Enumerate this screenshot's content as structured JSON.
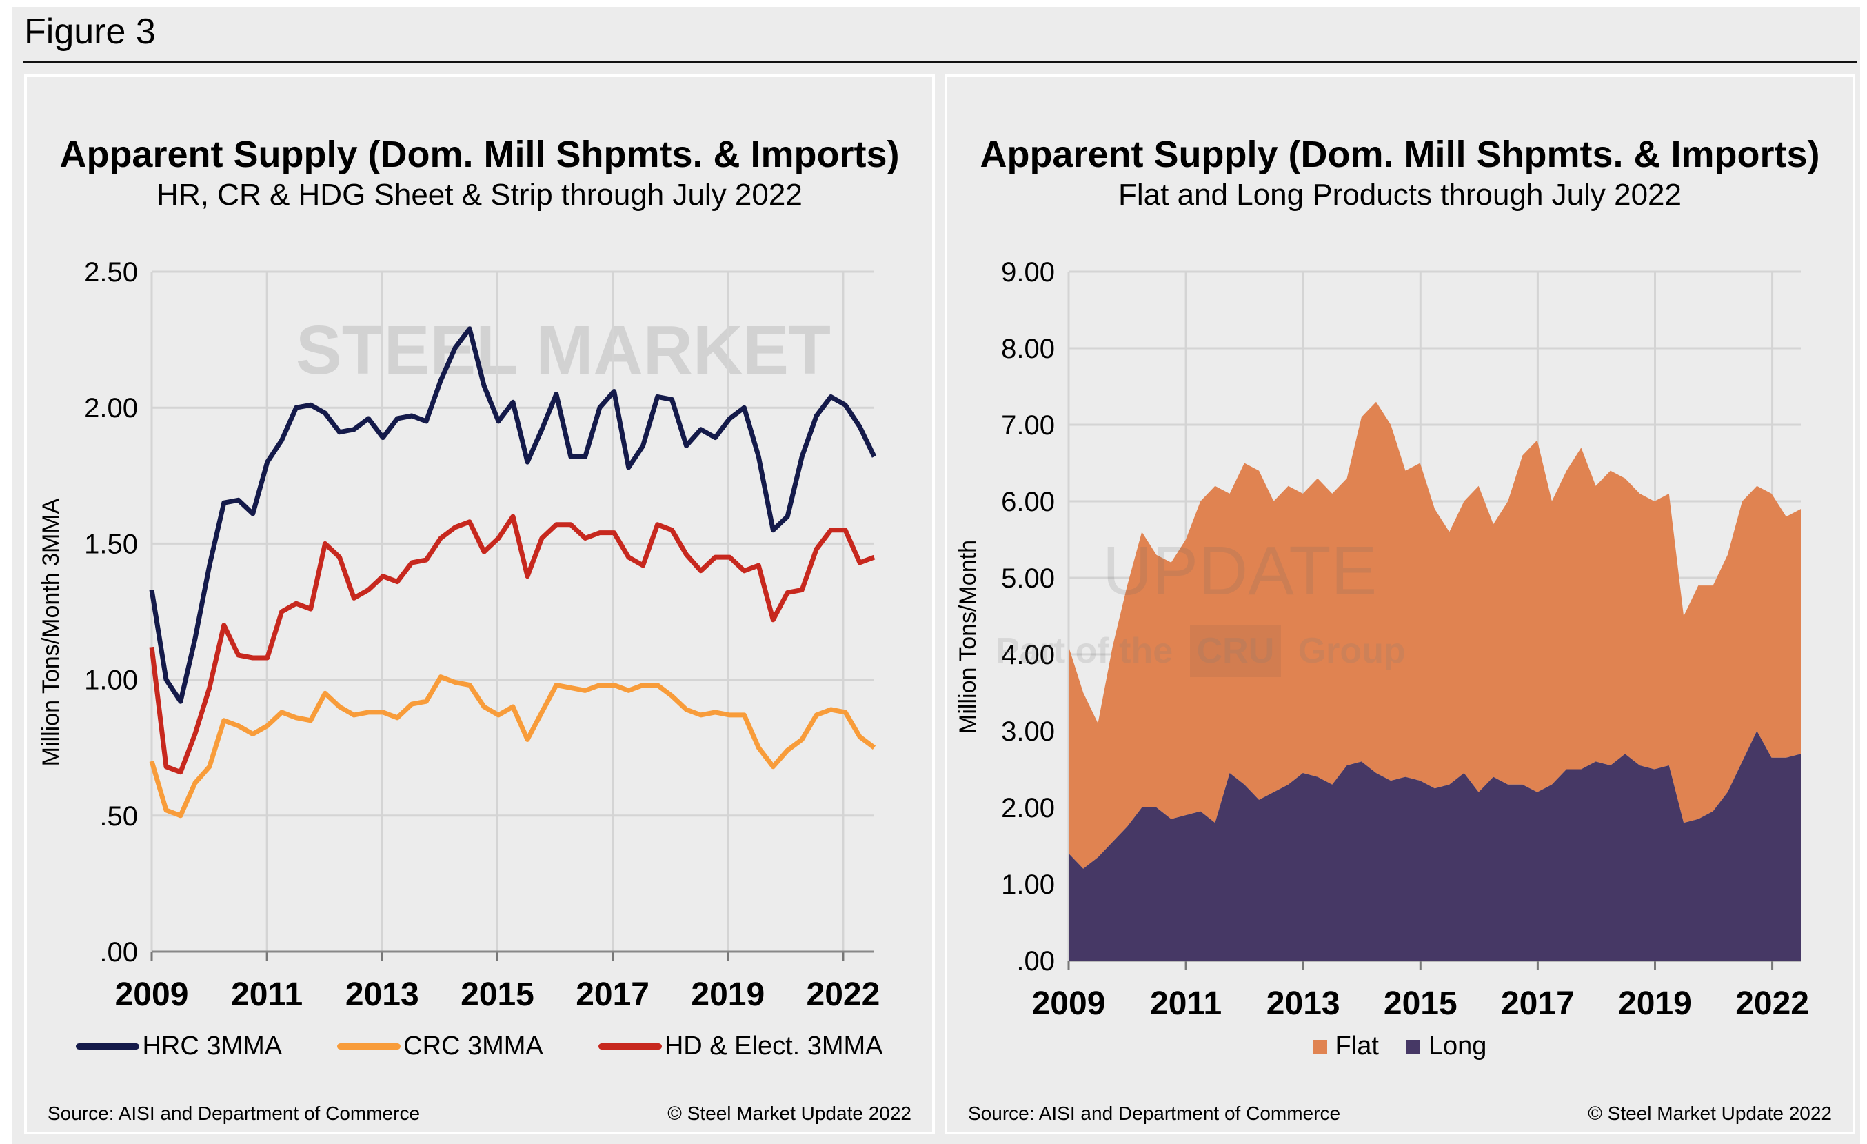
{
  "figure_title": "Figure 3",
  "watermark": {
    "brand": "STEEL MARKET",
    "brand2": "UPDATE",
    "tagline_pre": "Part of the",
    "tagline_logo": "CRU",
    "tagline_post": "Group"
  },
  "chart_data": [
    {
      "type": "line",
      "title": "Apparent Supply (Dom. Mill Shpmts. & Imports)",
      "subtitle": "HR, CR & HDG Sheet & Strip through July 2022",
      "ylabel": "Million Tons/Month 3MMA",
      "xlabel": "",
      "x_tick_labels": [
        "2009",
        "2011",
        "2013",
        "2015",
        "2017",
        "2019",
        "2022"
      ],
      "y_tick_labels": [
        ".00",
        ".50",
        "1.00",
        "1.50",
        "2.00",
        "2.50"
      ],
      "ylim": [
        0,
        2.5
      ],
      "grid": true,
      "legend_position": "bottom",
      "x_start": "2009-01",
      "x_end": "2022-07",
      "series": [
        {
          "name": "HRC 3MMA",
          "color": "#141a4a",
          "values": [
            1.33,
            1.0,
            0.92,
            1.15,
            1.42,
            1.65,
            1.66,
            1.61,
            1.8,
            1.88,
            2.0,
            2.01,
            1.98,
            1.91,
            1.92,
            1.96,
            1.89,
            1.96,
            1.97,
            1.95,
            2.1,
            2.22,
            2.29,
            2.08,
            1.95,
            2.02,
            1.8,
            1.92,
            2.05,
            1.82,
            1.82,
            2.0,
            2.06,
            1.78,
            1.86,
            2.04,
            2.03,
            1.86,
            1.92,
            1.89,
            1.96,
            2.0,
            1.82,
            1.55,
            1.6,
            1.82,
            1.97,
            2.04,
            2.01,
            1.93,
            1.82
          ]
        },
        {
          "name": "CRC 3MMA",
          "color": "#f89c3a",
          "values": [
            0.7,
            0.52,
            0.5,
            0.62,
            0.68,
            0.85,
            0.83,
            0.8,
            0.83,
            0.88,
            0.86,
            0.85,
            0.95,
            0.9,
            0.87,
            0.88,
            0.88,
            0.86,
            0.91,
            0.92,
            1.01,
            0.99,
            0.98,
            0.9,
            0.87,
            0.9,
            0.78,
            0.88,
            0.98,
            0.97,
            0.96,
            0.98,
            0.98,
            0.96,
            0.98,
            0.98,
            0.94,
            0.89,
            0.87,
            0.88,
            0.87,
            0.87,
            0.75,
            0.68,
            0.74,
            0.78,
            0.87,
            0.89,
            0.88,
            0.79,
            0.75
          ]
        },
        {
          "name": "HD & Elect. 3MMA",
          "color": "#c7281e",
          "values": [
            1.12,
            0.68,
            0.66,
            0.8,
            0.97,
            1.2,
            1.09,
            1.08,
            1.08,
            1.25,
            1.28,
            1.26,
            1.5,
            1.45,
            1.3,
            1.33,
            1.38,
            1.36,
            1.43,
            1.44,
            1.52,
            1.56,
            1.58,
            1.47,
            1.52,
            1.6,
            1.38,
            1.52,
            1.57,
            1.57,
            1.52,
            1.54,
            1.54,
            1.45,
            1.42,
            1.57,
            1.55,
            1.46,
            1.4,
            1.45,
            1.45,
            1.4,
            1.42,
            1.22,
            1.32,
            1.33,
            1.48,
            1.55,
            1.55,
            1.43,
            1.45
          ]
        }
      ],
      "source": "Source: AISI and Department of Commerce",
      "copyright": "© Steel Market Update 2022"
    },
    {
      "type": "area",
      "stacked": true,
      "title": "Apparent Supply (Dom. Mill Shpmts. & Imports)",
      "subtitle": "Flat and Long Products through July 2022",
      "ylabel": "Million Tons/Month",
      "xlabel": "",
      "x_tick_labels": [
        "2009",
        "2011",
        "2013",
        "2015",
        "2017",
        "2019",
        "2022"
      ],
      "y_tick_labels": [
        ".00",
        "1.00",
        "2.00",
        "3.00",
        "4.00",
        "5.00",
        "6.00",
        "7.00",
        "8.00",
        "9.00"
      ],
      "ylim": [
        0,
        9
      ],
      "grid": true,
      "legend_position": "bottom",
      "x_start": "2009-01",
      "x_end": "2022-07",
      "series": [
        {
          "name": "Long",
          "color": "#463865",
          "values": [
            1.4,
            1.2,
            1.35,
            1.55,
            1.75,
            2.0,
            2.0,
            1.85,
            1.9,
            1.95,
            1.8,
            2.45,
            2.3,
            2.1,
            2.2,
            2.3,
            2.45,
            2.4,
            2.3,
            2.55,
            2.6,
            2.45,
            2.35,
            2.4,
            2.35,
            2.25,
            2.3,
            2.45,
            2.2,
            2.4,
            2.3,
            2.3,
            2.2,
            2.3,
            2.5,
            2.5,
            2.6,
            2.55,
            2.7,
            2.55,
            2.5,
            2.55,
            1.8,
            1.85,
            1.95,
            2.2,
            2.6,
            3.0,
            2.65,
            2.65,
            2.7
          ]
        },
        {
          "name": "Flat",
          "color": "#e08351",
          "values": [
            2.7,
            2.3,
            1.75,
            2.55,
            3.15,
            3.6,
            3.3,
            3.35,
            3.6,
            4.05,
            4.4,
            3.65,
            4.2,
            4.3,
            3.8,
            3.9,
            3.65,
            3.9,
            3.8,
            3.75,
            4.5,
            4.85,
            4.65,
            4.0,
            4.15,
            3.65,
            3.3,
            3.55,
            4.0,
            3.3,
            3.7,
            4.3,
            4.6,
            3.7,
            3.9,
            4.2,
            3.6,
            3.85,
            3.6,
            3.55,
            3.5,
            3.55,
            2.7,
            3.05,
            2.95,
            3.1,
            3.4,
            3.2,
            3.45,
            3.15,
            3.2
          ]
        }
      ],
      "legend_order": [
        "Flat",
        "Long"
      ],
      "source": "Source: AISI and Department of Commerce",
      "copyright": "© Steel Market Update 2022"
    }
  ]
}
